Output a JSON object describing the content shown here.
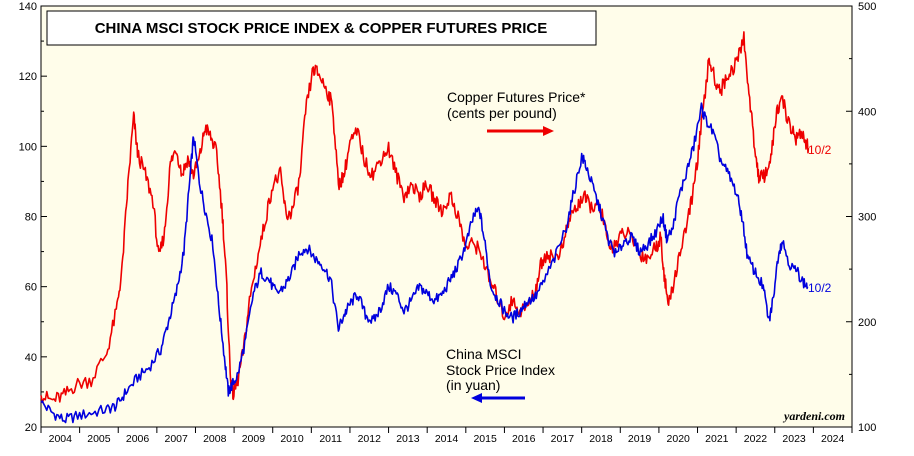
{
  "chart_data": {
    "type": "line",
    "title": "CHINA MSCI STOCK PRICE INDEX & COPPER FUTURES PRICE",
    "x_axis": {
      "start": 2004,
      "end": 2025,
      "tick_labels": [
        "2004",
        "2005",
        "2006",
        "2007",
        "2008",
        "2009",
        "2010",
        "2011",
        "2012",
        "2013",
        "2014",
        "2015",
        "2016",
        "2017",
        "2018",
        "2019",
        "2020",
        "2021",
        "2022",
        "2023",
        "2024"
      ]
    },
    "y_left": {
      "min": 20,
      "max": 140,
      "ticks": [
        "20",
        "40",
        "60",
        "80",
        "100",
        "120",
        "140"
      ]
    },
    "y_right": {
      "min": 100,
      "max": 500,
      "ticks": [
        "100",
        "200",
        "300",
        "400",
        "500"
      ]
    },
    "series": [
      {
        "name": "China MSCI Stock Price Index (in yuan)",
        "axis": "left",
        "color": "#0000dd",
        "end_label": "10/2",
        "annotation": [
          "China MSCI",
          "Stock Price Index",
          "(in yuan)"
        ],
        "points": [
          [
            2004.0,
            27
          ],
          [
            2004.3,
            24
          ],
          [
            2004.6,
            22
          ],
          [
            2004.9,
            23
          ],
          [
            2005.3,
            24
          ],
          [
            2005.7,
            25
          ],
          [
            2005.95,
            26
          ],
          [
            2006.2,
            30
          ],
          [
            2006.5,
            34
          ],
          [
            2006.8,
            37
          ],
          [
            2007.1,
            42
          ],
          [
            2007.3,
            50
          ],
          [
            2007.5,
            58
          ],
          [
            2007.7,
            70
          ],
          [
            2007.85,
            90
          ],
          [
            2007.95,
            103
          ],
          [
            2008.1,
            90
          ],
          [
            2008.25,
            82
          ],
          [
            2008.45,
            72
          ],
          [
            2008.6,
            55
          ],
          [
            2008.75,
            40
          ],
          [
            2008.85,
            30
          ],
          [
            2008.95,
            32
          ],
          [
            2009.1,
            35
          ],
          [
            2009.3,
            45
          ],
          [
            2009.5,
            58
          ],
          [
            2009.7,
            64
          ],
          [
            2009.9,
            62
          ],
          [
            2010.1,
            58
          ],
          [
            2010.3,
            60
          ],
          [
            2010.5,
            64
          ],
          [
            2010.7,
            70
          ],
          [
            2010.9,
            71
          ],
          [
            2011.1,
            68
          ],
          [
            2011.3,
            66
          ],
          [
            2011.5,
            62
          ],
          [
            2011.7,
            48
          ],
          [
            2011.85,
            52
          ],
          [
            2012.0,
            55
          ],
          [
            2012.2,
            58
          ],
          [
            2012.4,
            52
          ],
          [
            2012.6,
            50
          ],
          [
            2012.8,
            54
          ],
          [
            2013.0,
            60
          ],
          [
            2013.2,
            58
          ],
          [
            2013.4,
            53
          ],
          [
            2013.6,
            56
          ],
          [
            2013.8,
            60
          ],
          [
            2014.0,
            58
          ],
          [
            2014.2,
            56
          ],
          [
            2014.4,
            58
          ],
          [
            2014.6,
            62
          ],
          [
            2014.8,
            66
          ],
          [
            2015.0,
            72
          ],
          [
            2015.2,
            80
          ],
          [
            2015.35,
            82
          ],
          [
            2015.5,
            72
          ],
          [
            2015.65,
            60
          ],
          [
            2015.85,
            56
          ],
          [
            2016.0,
            53
          ],
          [
            2016.2,
            51
          ],
          [
            2016.4,
            53
          ],
          [
            2016.6,
            56
          ],
          [
            2016.8,
            57
          ],
          [
            2017.0,
            61
          ],
          [
            2017.3,
            68
          ],
          [
            2017.6,
            77
          ],
          [
            2017.8,
            87
          ],
          [
            2018.0,
            97
          ],
          [
            2018.1,
            95
          ],
          [
            2018.3,
            88
          ],
          [
            2018.5,
            81
          ],
          [
            2018.7,
            73
          ],
          [
            2018.9,
            69
          ],
          [
            2019.1,
            73
          ],
          [
            2019.3,
            74
          ],
          [
            2019.5,
            70
          ],
          [
            2019.7,
            72
          ],
          [
            2019.9,
            75
          ],
          [
            2020.1,
            80
          ],
          [
            2020.2,
            74
          ],
          [
            2020.35,
            76
          ],
          [
            2020.5,
            85
          ],
          [
            2020.7,
            92
          ],
          [
            2020.9,
            100
          ],
          [
            2021.1,
            111
          ],
          [
            2021.2,
            108
          ],
          [
            2021.4,
            104
          ],
          [
            2021.6,
            96
          ],
          [
            2021.8,
            92
          ],
          [
            2022.0,
            87
          ],
          [
            2022.15,
            80
          ],
          [
            2022.3,
            68
          ],
          [
            2022.5,
            64
          ],
          [
            2022.7,
            60
          ],
          [
            2022.85,
            50
          ],
          [
            2022.95,
            56
          ],
          [
            2023.1,
            70
          ],
          [
            2023.2,
            73
          ],
          [
            2023.4,
            66
          ],
          [
            2023.6,
            64
          ],
          [
            2023.75,
            61
          ],
          [
            2023.85,
            60
          ]
        ]
      },
      {
        "name": "Copper Futures Price* (cents per pound)",
        "axis": "right",
        "color": "#ee0000",
        "end_label": "10/2",
        "annotation": [
          "Copper Futures Price*",
          "(cents per pound)"
        ],
        "points": [
          [
            2004.0,
            130
          ],
          [
            2004.3,
            125
          ],
          [
            2004.6,
            130
          ],
          [
            2004.9,
            140
          ],
          [
            2005.3,
            145
          ],
          [
            2005.7,
            170
          ],
          [
            2005.95,
            210
          ],
          [
            2006.1,
            250
          ],
          [
            2006.25,
            330
          ],
          [
            2006.4,
            395
          ],
          [
            2006.5,
            360
          ],
          [
            2006.7,
            340
          ],
          [
            2006.9,
            315
          ],
          [
            2007.05,
            260
          ],
          [
            2007.2,
            285
          ],
          [
            2007.35,
            350
          ],
          [
            2007.5,
            365
          ],
          [
            2007.65,
            340
          ],
          [
            2007.8,
            355
          ],
          [
            2007.95,
            340
          ],
          [
            2008.1,
            355
          ],
          [
            2008.25,
            385
          ],
          [
            2008.4,
            375
          ],
          [
            2008.55,
            360
          ],
          [
            2008.7,
            300
          ],
          [
            2008.8,
            240
          ],
          [
            2008.9,
            150
          ],
          [
            2008.98,
            130
          ],
          [
            2009.1,
            145
          ],
          [
            2009.25,
            175
          ],
          [
            2009.4,
            220
          ],
          [
            2009.6,
            260
          ],
          [
            2009.8,
            295
          ],
          [
            2010.0,
            330
          ],
          [
            2010.2,
            340
          ],
          [
            2010.35,
            300
          ],
          [
            2010.5,
            305
          ],
          [
            2010.7,
            335
          ],
          [
            2010.85,
            400
          ],
          [
            2011.05,
            440
          ],
          [
            2011.2,
            435
          ],
          [
            2011.4,
            420
          ],
          [
            2011.55,
            405
          ],
          [
            2011.7,
            330
          ],
          [
            2011.85,
            340
          ],
          [
            2012.0,
            370
          ],
          [
            2012.2,
            380
          ],
          [
            2012.4,
            350
          ],
          [
            2012.6,
            340
          ],
          [
            2012.8,
            355
          ],
          [
            2013.0,
            365
          ],
          [
            2013.2,
            340
          ],
          [
            2013.4,
            320
          ],
          [
            2013.6,
            330
          ],
          [
            2013.8,
            320
          ],
          [
            2014.0,
            330
          ],
          [
            2014.2,
            315
          ],
          [
            2014.4,
            305
          ],
          [
            2014.6,
            320
          ],
          [
            2014.8,
            300
          ],
          [
            2015.0,
            270
          ],
          [
            2015.2,
            275
          ],
          [
            2015.4,
            265
          ],
          [
            2015.6,
            240
          ],
          [
            2015.8,
            225
          ],
          [
            2016.0,
            205
          ],
          [
            2016.2,
            220
          ],
          [
            2016.4,
            210
          ],
          [
            2016.6,
            215
          ],
          [
            2016.8,
            230
          ],
          [
            2016.95,
            255
          ],
          [
            2017.1,
            265
          ],
          [
            2017.3,
            260
          ],
          [
            2017.5,
            270
          ],
          [
            2017.7,
            300
          ],
          [
            2017.9,
            310
          ],
          [
            2018.05,
            320
          ],
          [
            2018.2,
            310
          ],
          [
            2018.4,
            310
          ],
          [
            2018.55,
            300
          ],
          [
            2018.7,
            270
          ],
          [
            2018.9,
            275
          ],
          [
            2019.1,
            285
          ],
          [
            2019.3,
            280
          ],
          [
            2019.5,
            265
          ],
          [
            2019.7,
            260
          ],
          [
            2019.9,
            270
          ],
          [
            2020.05,
            280
          ],
          [
            2020.15,
            240
          ],
          [
            2020.25,
            215
          ],
          [
            2020.4,
            240
          ],
          [
            2020.6,
            275
          ],
          [
            2020.8,
            305
          ],
          [
            2020.95,
            340
          ],
          [
            2021.1,
            385
          ],
          [
            2021.3,
            450
          ],
          [
            2021.45,
            430
          ],
          [
            2021.6,
            420
          ],
          [
            2021.8,
            435
          ],
          [
            2022.0,
            445
          ],
          [
            2022.2,
            470
          ],
          [
            2022.35,
            410
          ],
          [
            2022.5,
            360
          ],
          [
            2022.6,
            335
          ],
          [
            2022.75,
            340
          ],
          [
            2022.9,
            355
          ],
          [
            2023.05,
            400
          ],
          [
            2023.2,
            410
          ],
          [
            2023.4,
            385
          ],
          [
            2023.55,
            375
          ],
          [
            2023.7,
            380
          ],
          [
            2023.8,
            370
          ],
          [
            2023.87,
            365
          ]
        ]
      }
    ],
    "watermark": "yardeni.com"
  }
}
